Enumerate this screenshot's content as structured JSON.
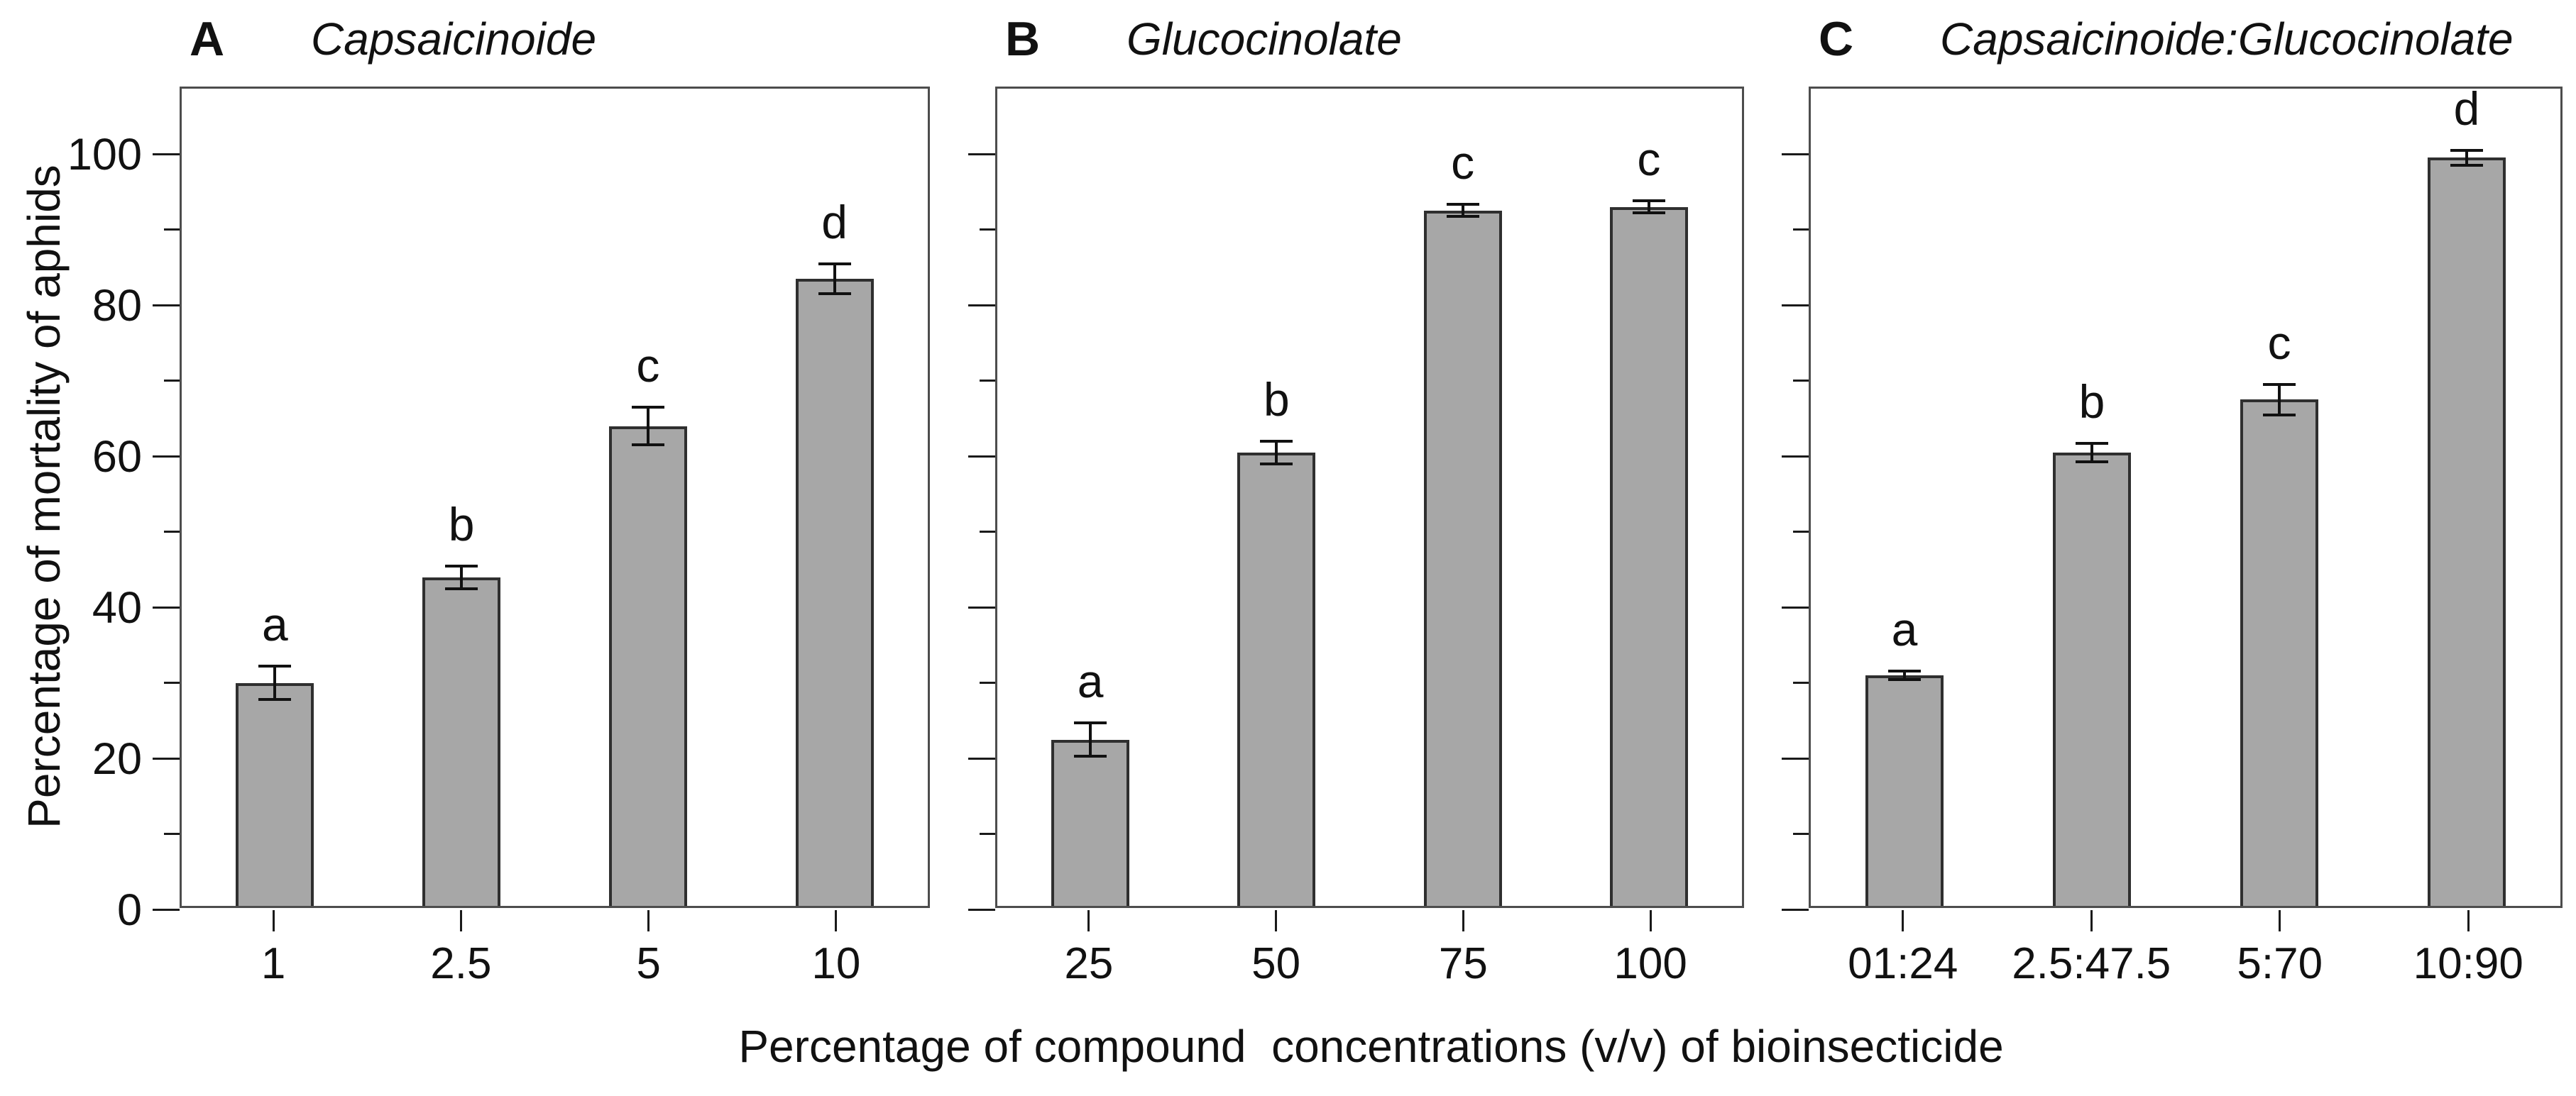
{
  "chart_data": {
    "type": "bar",
    "title": "",
    "ylabel": "Percentage of mortality of aphids",
    "xlabel": "Percentage of compound  concentrations (v/v) of bioinsecticide",
    "ylim": [
      0,
      108.7
    ],
    "yticks": [
      0,
      20,
      40,
      60,
      80,
      100
    ],
    "yticks_minor": [
      10,
      30,
      50,
      70,
      90
    ],
    "grid": false,
    "legend": "none",
    "bar_color": "#a7a7a7",
    "bar_border_color": "#2f2f2f",
    "error_bar_color": "#111111",
    "panels": [
      {
        "letter": "A",
        "title": "Capsaicinoide",
        "categories": [
          "1",
          "2.5",
          "5",
          "10"
        ],
        "values": [
          29.5,
          43.5,
          63.5,
          83
        ],
        "errors": [
          2.2,
          1.5,
          2.5,
          2
        ],
        "sig_letters": [
          "a",
          "b",
          "c",
          "d"
        ]
      },
      {
        "letter": "B",
        "title": "Glucocinolate",
        "categories": [
          "25",
          "50",
          "75",
          "100"
        ],
        "values": [
          22,
          60,
          92,
          92.5
        ],
        "errors": [
          2.2,
          1.5,
          0.8,
          0.8
        ],
        "sig_letters": [
          "a",
          "b",
          "c",
          "c"
        ]
      },
      {
        "letter": "C",
        "title": "Capsaicinoide:Glucocinolate",
        "categories": [
          "01:24",
          "2.5:47.5",
          "5:70",
          "10:90"
        ],
        "values": [
          30.5,
          60,
          67,
          99
        ],
        "errors": [
          0.6,
          1.2,
          2,
          1
        ],
        "sig_letters": [
          "a",
          "b",
          "c",
          "d"
        ]
      }
    ]
  }
}
